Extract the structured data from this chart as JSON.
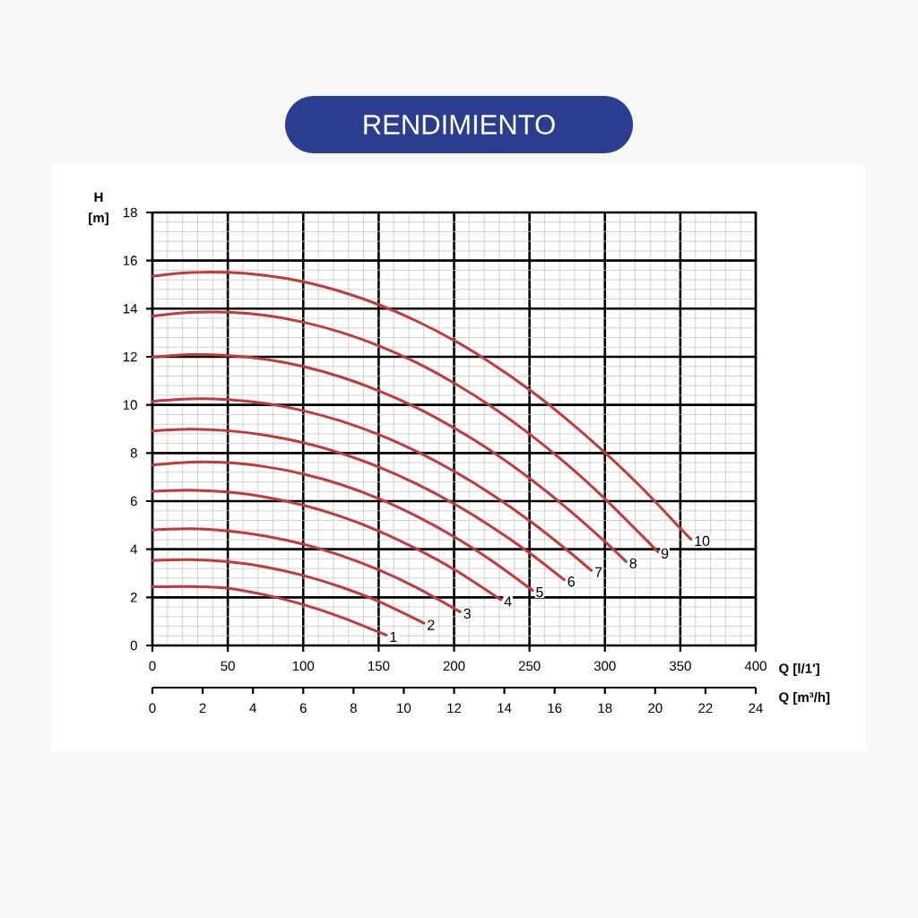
{
  "chart_data": {
    "type": "line",
    "title": "RENDIMIENTO",
    "xlabel": "Q [l/1']",
    "x2label": "Q [m³/h]",
    "ylabel": "H [m]",
    "xlim": [
      0,
      400
    ],
    "xticks": [
      0,
      50,
      100,
      150,
      200,
      250,
      300,
      350,
      400
    ],
    "x2lim": [
      0,
      24
    ],
    "x2ticks": [
      0,
      2,
      4,
      6,
      8,
      10,
      12,
      14,
      16,
      18,
      20,
      22,
      24
    ],
    "ylim": [
      0,
      18
    ],
    "yticks": [
      0,
      2,
      4,
      6,
      8,
      10,
      12,
      14,
      16,
      18
    ],
    "grid": true,
    "line_style": "solid",
    "series": [
      {
        "name": "1",
        "color": "#c33a3a",
        "x": [
          0,
          25,
          50,
          75,
          100,
          125,
          155
        ],
        "values": [
          2.44,
          2.45,
          2.38,
          2.1,
          1.7,
          1.18,
          0.43
        ]
      },
      {
        "name": "2",
        "color": "#c33a3a",
        "x": [
          0,
          25,
          50,
          75,
          100,
          125,
          150,
          180
        ],
        "values": [
          3.53,
          3.57,
          3.48,
          3.26,
          2.91,
          2.43,
          1.83,
          0.93
        ]
      },
      {
        "name": "3",
        "color": "#c33a3a",
        "x": [
          0,
          25,
          50,
          75,
          100,
          125,
          150,
          175,
          204
        ],
        "values": [
          4.8,
          4.85,
          4.76,
          4.55,
          4.21,
          3.74,
          3.14,
          2.41,
          1.4
        ]
      },
      {
        "name": "4",
        "color": "#c33a3a",
        "x": [
          0,
          25,
          50,
          75,
          100,
          125,
          150,
          175,
          200,
          231
        ],
        "values": [
          6.41,
          6.46,
          6.38,
          6.17,
          5.83,
          5.36,
          4.76,
          4.02,
          3.16,
          1.9
        ]
      },
      {
        "name": "5",
        "color": "#c33a3a",
        "x": [
          0,
          25,
          50,
          75,
          100,
          125,
          150,
          175,
          200,
          225,
          252
        ],
        "values": [
          7.5,
          7.62,
          7.6,
          7.43,
          7.13,
          6.69,
          6.11,
          5.38,
          4.52,
          3.52,
          2.29
        ]
      },
      {
        "name": "6",
        "color": "#c33a3a",
        "x": [
          0,
          25,
          50,
          75,
          100,
          125,
          150,
          175,
          200,
          225,
          250,
          273
        ],
        "values": [
          8.92,
          8.99,
          8.93,
          8.74,
          8.43,
          7.99,
          7.42,
          6.72,
          5.89,
          4.93,
          3.85,
          2.73
        ]
      },
      {
        "name": "7",
        "color": "#c33a3a",
        "x": [
          0,
          25,
          50,
          75,
          100,
          125,
          150,
          175,
          200,
          225,
          250,
          275,
          291
        ],
        "values": [
          10.15,
          10.25,
          10.22,
          10.06,
          9.76,
          9.33,
          8.77,
          8.07,
          7.24,
          6.28,
          5.19,
          3.96,
          3.12
        ]
      },
      {
        "name": "8",
        "color": "#c33a3a",
        "x": [
          0,
          25,
          50,
          75,
          100,
          125,
          150,
          175,
          200,
          225,
          250,
          275,
          300,
          314
        ],
        "values": [
          11.98,
          12.09,
          12.06,
          11.9,
          11.6,
          11.16,
          10.59,
          9.89,
          9.04,
          8.07,
          6.95,
          5.7,
          4.32,
          3.49
        ]
      },
      {
        "name": "9",
        "color": "#c33a3a",
        "x": [
          0,
          25,
          50,
          75,
          100,
          125,
          150,
          175,
          200,
          225,
          250,
          275,
          300,
          325,
          335
        ],
        "values": [
          13.69,
          13.84,
          13.85,
          13.72,
          13.44,
          13.02,
          12.46,
          11.76,
          10.91,
          9.92,
          8.79,
          7.52,
          6.1,
          4.54,
          3.9
        ]
      },
      {
        "name": "10",
        "color": "#c33a3a",
        "x": [
          0,
          25,
          50,
          75,
          100,
          125,
          150,
          175,
          200,
          225,
          250,
          275,
          300,
          325,
          350,
          357
        ],
        "values": [
          15.35,
          15.5,
          15.51,
          15.38,
          15.12,
          14.71,
          14.17,
          13.49,
          12.68,
          11.72,
          10.63,
          9.39,
          8.02,
          6.52,
          4.87,
          4.42
        ]
      }
    ]
  }
}
